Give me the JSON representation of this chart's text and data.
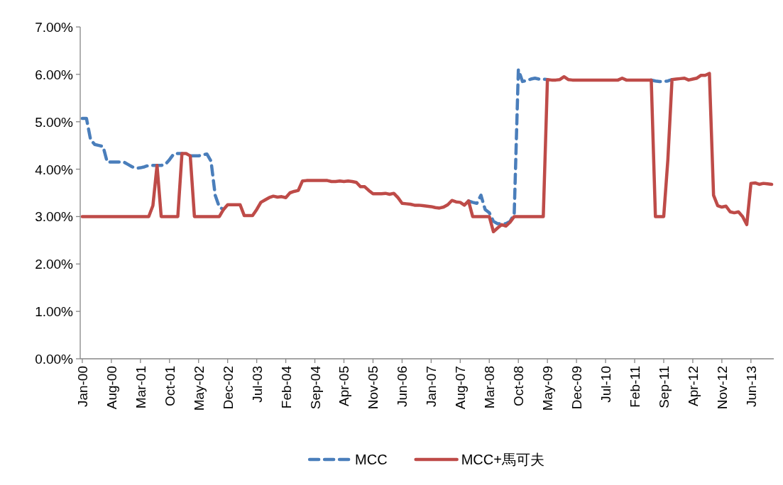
{
  "chart_data": {
    "type": "line",
    "categories": [
      "Jan-00",
      null,
      null,
      null,
      null,
      null,
      null,
      "Aug-00",
      null,
      null,
      null,
      null,
      null,
      null,
      "Mar-01",
      null,
      null,
      null,
      null,
      null,
      null,
      "Oct-01",
      null,
      null,
      null,
      null,
      null,
      null,
      "May-02",
      null,
      null,
      null,
      null,
      null,
      null,
      "Dec-02",
      null,
      null,
      null,
      null,
      null,
      null,
      "Jul-03",
      null,
      null,
      null,
      null,
      null,
      null,
      "Feb-04",
      null,
      null,
      null,
      null,
      null,
      null,
      "Sep-04",
      null,
      null,
      null,
      null,
      null,
      null,
      "Apr-05",
      null,
      null,
      null,
      null,
      null,
      null,
      "Nov-05",
      null,
      null,
      null,
      null,
      null,
      null,
      "Jun-06",
      null,
      null,
      null,
      null,
      null,
      null,
      "Jan-07",
      null,
      null,
      null,
      null,
      null,
      null,
      "Aug-07",
      null,
      null,
      null,
      null,
      null,
      null,
      "Mar-08",
      null,
      null,
      null,
      null,
      null,
      null,
      "Oct-08",
      null,
      null,
      null,
      null,
      null,
      null,
      "May-09",
      null,
      null,
      null,
      null,
      null,
      null,
      "Dec-09",
      null,
      null,
      null,
      null,
      null,
      null,
      "Jul-10",
      null,
      null,
      null,
      null,
      null,
      null,
      "Feb-11",
      null,
      null,
      null,
      null,
      null,
      null,
      "Sep-11",
      null,
      null,
      null,
      null,
      null,
      null,
      "Apr-12",
      null,
      null,
      null,
      null,
      null,
      null,
      "Nov-12",
      null,
      null,
      null,
      null,
      null,
      null,
      "Jun-13",
      null,
      null,
      null,
      null,
      null
    ],
    "series": [
      {
        "name": "MCC",
        "color": "#4a7ebb",
        "line_style": "dashed",
        "values": [
          5.07,
          5.07,
          4.62,
          4.52,
          4.5,
          4.48,
          4.15,
          4.15,
          4.15,
          4.15,
          4.15,
          4.1,
          4.05,
          4.02,
          4.03,
          4.05,
          4.08,
          4.08,
          4.08,
          4.08,
          4.1,
          4.2,
          4.32,
          4.33,
          4.33,
          null,
          4.28,
          4.28,
          4.28,
          4.3,
          4.32,
          4.17,
          3.45,
          3.2,
          3.15,
          null,
          null,
          null,
          null,
          null,
          null,
          null,
          null,
          null,
          null,
          null,
          null,
          null,
          null,
          null,
          null,
          null,
          null,
          null,
          null,
          null,
          null,
          null,
          null,
          null,
          null,
          null,
          null,
          null,
          null,
          null,
          null,
          null,
          null,
          null,
          null,
          null,
          null,
          null,
          null,
          null,
          null,
          null,
          null,
          null,
          null,
          null,
          null,
          null,
          null,
          null,
          null,
          null,
          null,
          null,
          null,
          null,
          null,
          3.33,
          3.3,
          3.28,
          3.45,
          3.15,
          3.08,
          2.9,
          2.85,
          2.85,
          2.85,
          2.9,
          3.05,
          6.1,
          5.85,
          5.87,
          5.9,
          5.92,
          5.9,
          5.9,
          5.89,
          null,
          null,
          null,
          null,
          null,
          null,
          null,
          null,
          null,
          null,
          null,
          null,
          null,
          null,
          null,
          null,
          null,
          null,
          null,
          null,
          null,
          null,
          null,
          null,
          5.88,
          5.86,
          5.85,
          5.85,
          5.86,
          5.89,
          null,
          null,
          null,
          null,
          null,
          null,
          null,
          null,
          null,
          null,
          null,
          null,
          null,
          null,
          null,
          null,
          null,
          null,
          null,
          null,
          null,
          null,
          null,
          null
        ]
      },
      {
        "name": "MCC+馬可夫",
        "color": "#be4b48",
        "line_style": "solid",
        "values": [
          3,
          3,
          3,
          3,
          3,
          3,
          3,
          3,
          3,
          3,
          3,
          3,
          3,
          3,
          3,
          3,
          3,
          3.23,
          4.08,
          3,
          3,
          3,
          3,
          3,
          4.33,
          4.33,
          4.28,
          3,
          3,
          3,
          3,
          3,
          3,
          3,
          3.15,
          3.25,
          3.25,
          3.25,
          3.25,
          3.02,
          3.02,
          3.02,
          3.15,
          3.3,
          3.35,
          3.4,
          3.43,
          3.41,
          3.42,
          3.4,
          3.5,
          3.53,
          3.55,
          3.75,
          3.76,
          3.76,
          3.76,
          3.76,
          3.76,
          3.76,
          3.74,
          3.74,
          3.75,
          3.74,
          3.75,
          3.74,
          3.72,
          3.63,
          3.63,
          3.55,
          3.48,
          3.48,
          3.48,
          3.49,
          3.47,
          3.49,
          3.4,
          3.28,
          3.27,
          3.26,
          3.24,
          3.24,
          3.23,
          3.22,
          3.21,
          3.19,
          3.18,
          3.2,
          3.25,
          3.34,
          3.31,
          3.3,
          3.24,
          3.33,
          3,
          3,
          3,
          3,
          3,
          2.68,
          2.76,
          2.83,
          2.8,
          2.88,
          3,
          3,
          3,
          3,
          3,
          3,
          3,
          3,
          5.89,
          5.88,
          5.88,
          5.89,
          5.95,
          5.89,
          5.88,
          5.88,
          5.88,
          5.88,
          5.88,
          5.88,
          5.88,
          5.88,
          5.88,
          5.88,
          5.88,
          5.88,
          5.92,
          5.88,
          5.88,
          5.88,
          5.88,
          5.88,
          5.88,
          5.88,
          3,
          3,
          3,
          4.2,
          5.89,
          5.9,
          5.91,
          5.92,
          5.88,
          5.9,
          5.92,
          5.98,
          5.98,
          6.02,
          3.45,
          3.23,
          3.2,
          3.22,
          3.1,
          3.08,
          3.1,
          3,
          2.83,
          3.7,
          3.71,
          3.68,
          3.7,
          3.69,
          3.68
        ]
      }
    ],
    "ylim": [
      0,
      7
    ],
    "yticks": [
      {
        "value": 0,
        "label": "0.00%"
      },
      {
        "value": 1,
        "label": "1.00%"
      },
      {
        "value": 2,
        "label": "2.00%"
      },
      {
        "value": 3,
        "label": "3.00%"
      },
      {
        "value": 4,
        "label": "4.00%"
      },
      {
        "value": 5,
        "label": "5.00%"
      },
      {
        "value": 6,
        "label": "6.00%"
      },
      {
        "value": 7,
        "label": "7.00%"
      }
    ],
    "legend": "bottom"
  }
}
